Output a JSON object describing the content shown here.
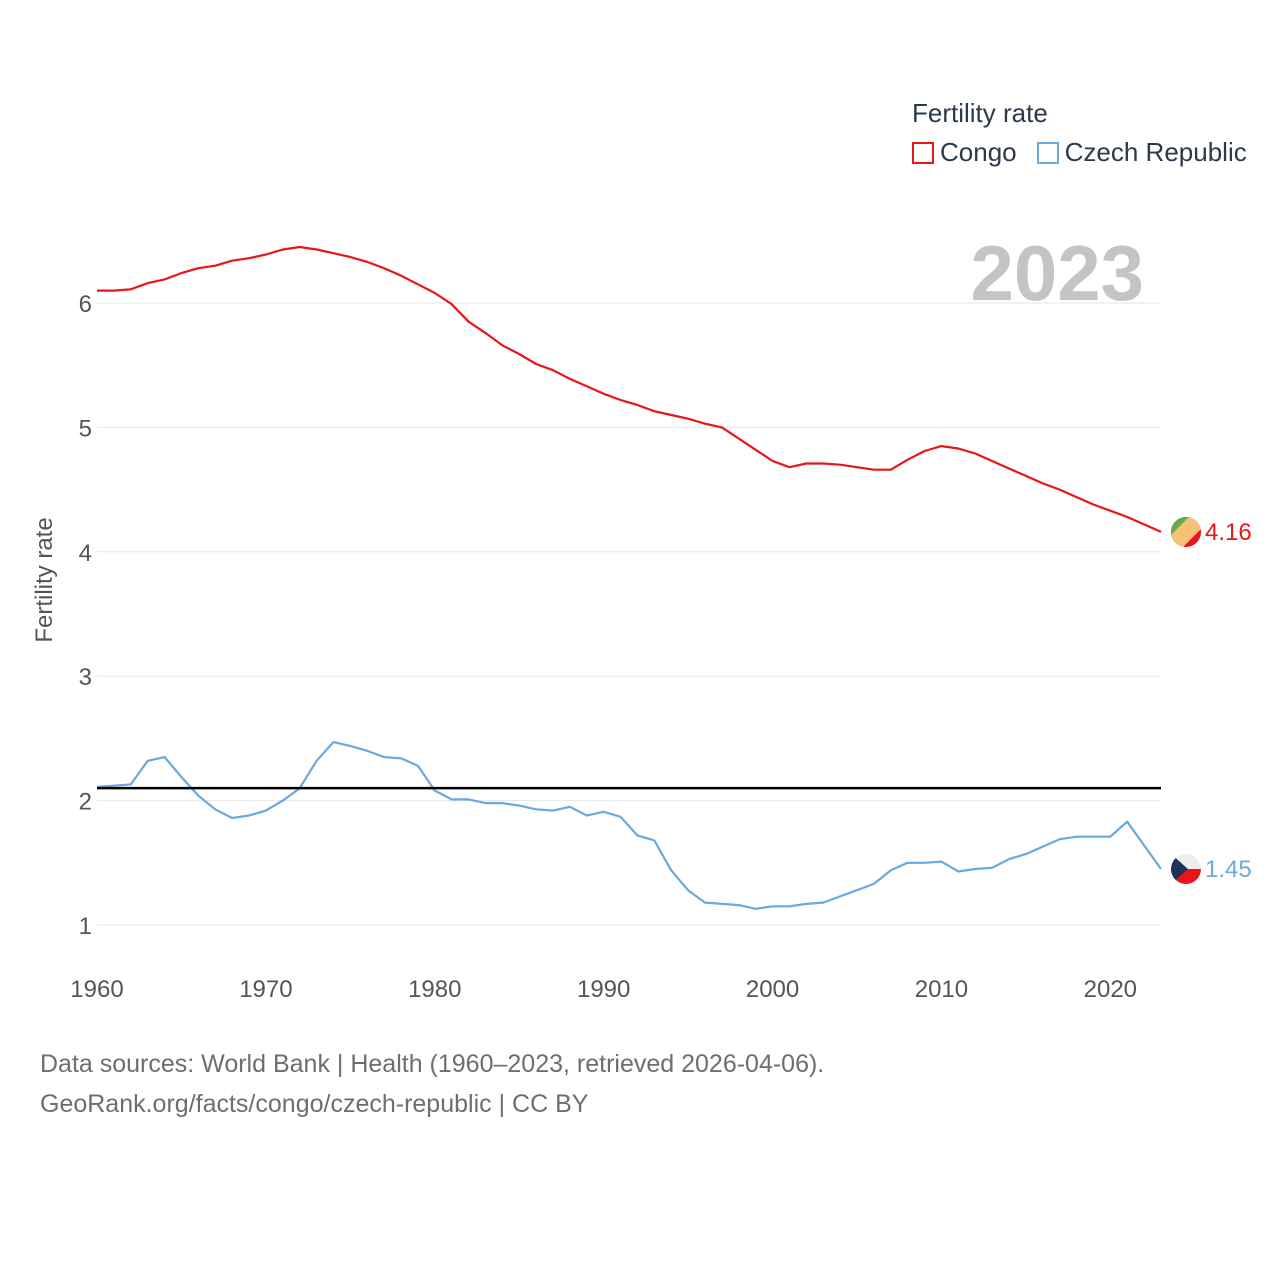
{
  "legend": {
    "title": "Fertility rate",
    "items": [
      {
        "label": "Congo",
        "color": "#e8151a"
      },
      {
        "label": "Czech Republic",
        "color": "#6aa8e0"
      }
    ]
  },
  "year_display": "2023",
  "footer": {
    "line1": "Data sources: World Bank | Health (1960–2023, retrieved 2026-04-06).",
    "line2": "GeoRank.org/facts/congo/czech-republic | CC BY"
  },
  "chart_data": {
    "type": "line",
    "title": "Fertility rate",
    "xlabel": "",
    "ylabel": "Fertility rate",
    "xlim": [
      1960,
      2023
    ],
    "ylim": [
      1,
      6.5
    ],
    "x_ticks": [
      1960,
      1970,
      1980,
      1990,
      2000,
      2010,
      2020
    ],
    "y_ticks": [
      1,
      2,
      3,
      4,
      5,
      6
    ],
    "grid": true,
    "legend_position": "top-right",
    "reference_line": {
      "y": 2.1,
      "color": "#000000"
    },
    "x": [
      1960,
      1961,
      1962,
      1963,
      1964,
      1965,
      1966,
      1967,
      1968,
      1969,
      1970,
      1971,
      1972,
      1973,
      1974,
      1975,
      1976,
      1977,
      1978,
      1979,
      1980,
      1981,
      1982,
      1983,
      1984,
      1985,
      1986,
      1987,
      1988,
      1989,
      1990,
      1991,
      1992,
      1993,
      1994,
      1995,
      1996,
      1997,
      1998,
      1999,
      2000,
      2001,
      2002,
      2003,
      2004,
      2005,
      2006,
      2007,
      2008,
      2009,
      2010,
      2011,
      2012,
      2013,
      2014,
      2015,
      2016,
      2017,
      2018,
      2019,
      2020,
      2021,
      2022,
      2023
    ],
    "series": [
      {
        "name": "Congo",
        "color": "#e8151a",
        "end_label": "4.16",
        "values": [
          6.1,
          6.1,
          6.11,
          6.16,
          6.19,
          6.24,
          6.28,
          6.3,
          6.34,
          6.36,
          6.39,
          6.43,
          6.45,
          6.43,
          6.4,
          6.37,
          6.33,
          6.28,
          6.22,
          6.15,
          6.08,
          5.99,
          5.85,
          5.76,
          5.66,
          5.59,
          5.51,
          5.46,
          5.39,
          5.33,
          5.27,
          5.22,
          5.18,
          5.13,
          5.1,
          5.07,
          5.03,
          5.0,
          4.91,
          4.82,
          4.73,
          4.68,
          4.71,
          4.71,
          4.7,
          4.68,
          4.66,
          4.66,
          4.74,
          4.81,
          4.85,
          4.83,
          4.79,
          4.73,
          4.67,
          4.61,
          4.55,
          4.5,
          4.44,
          4.38,
          4.33,
          4.28,
          4.22,
          4.16
        ]
      },
      {
        "name": "Czech Republic",
        "color": "#6aa8e0",
        "end_label": "1.45",
        "values": [
          2.11,
          2.12,
          2.13,
          2.32,
          2.35,
          2.19,
          2.04,
          1.93,
          1.86,
          1.88,
          1.92,
          2.0,
          2.1,
          2.32,
          2.47,
          2.44,
          2.4,
          2.35,
          2.34,
          2.28,
          2.08,
          2.01,
          2.01,
          1.98,
          1.98,
          1.96,
          1.93,
          1.92,
          1.95,
          1.88,
          1.91,
          1.87,
          1.72,
          1.68,
          1.44,
          1.28,
          1.18,
          1.17,
          1.16,
          1.13,
          1.15,
          1.15,
          1.17,
          1.18,
          1.23,
          1.28,
          1.33,
          1.44,
          1.5,
          1.5,
          1.51,
          1.43,
          1.45,
          1.46,
          1.53,
          1.57,
          1.63,
          1.69,
          1.71,
          1.71,
          1.71,
          1.83,
          1.64,
          1.45
        ]
      }
    ]
  }
}
